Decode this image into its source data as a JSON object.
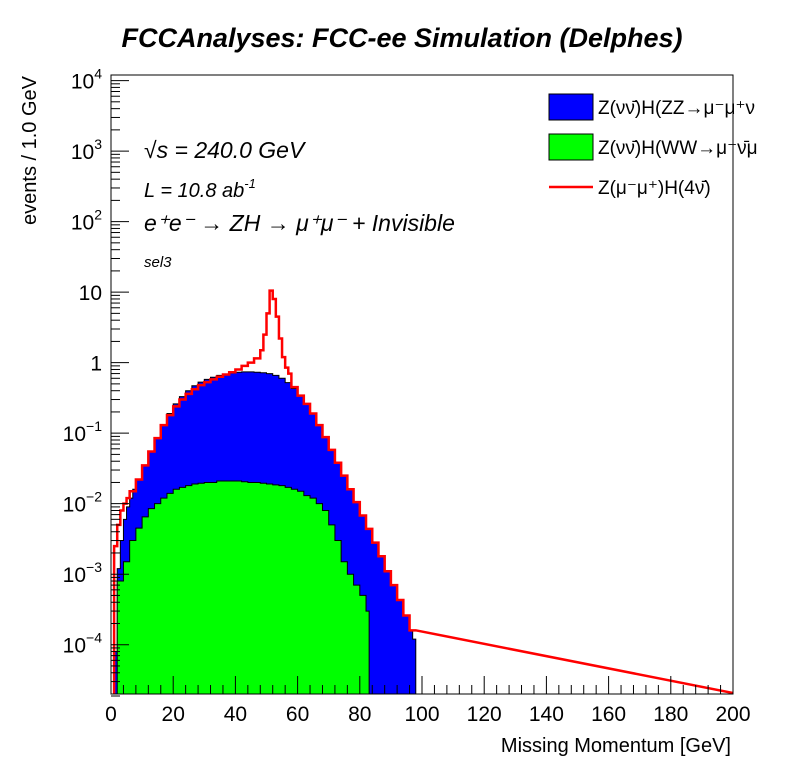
{
  "chart_data": {
    "type": "area",
    "title": "FCCAnalyses: FCC-ee Simulation (Delphes)",
    "xlabel": "Missing Momentum [GeV]",
    "ylabel": "events / 1.0 GeV",
    "xlim": [
      0,
      200
    ],
    "ylim": [
      2e-05,
      12000
    ],
    "yscale": "log",
    "grid": false,
    "legend_position": "top-right",
    "x_ticks": [
      "0",
      "20",
      "40",
      "60",
      "80",
      "100",
      "120",
      "140",
      "160",
      "180",
      "200"
    ],
    "y_ticks": [
      {
        "value": 0.0001,
        "base": "10",
        "exp": "−4"
      },
      {
        "value": 0.001,
        "base": "10",
        "exp": "−3"
      },
      {
        "value": 0.01,
        "base": "10",
        "exp": "−2"
      },
      {
        "value": 0.1,
        "base": "10",
        "exp": "−1"
      },
      {
        "value": 1,
        "base": "1",
        "exp": ""
      },
      {
        "value": 10,
        "base": "10",
        "exp": ""
      },
      {
        "value": 100,
        "base": "10",
        "exp": "2"
      },
      {
        "value": 1000,
        "base": "10",
        "exp": "3"
      },
      {
        "value": 10000,
        "base": "10",
        "exp": "4"
      }
    ],
    "annotations": {
      "sqrt_s": "√s = 240.0 GeV",
      "lumi": "L = 10.8 ab",
      "lumi_exp": "-1",
      "process": "e⁺e⁻ → ZH → μ⁺μ⁻ + Invisible",
      "selection": "sel3"
    },
    "series": [
      {
        "name": "Z(νν̄)H(ZZ→μ⁻μ⁺ν",
        "style": "filled",
        "color": "#0000ff",
        "points": [
          [
            0,
            0.0
          ],
          [
            1,
            8e-05
          ],
          [
            2,
            0.0012
          ],
          [
            3,
            0.003
          ],
          [
            4,
            0.006
          ],
          [
            5,
            0.009
          ],
          [
            6,
            0.012
          ],
          [
            7,
            0.016
          ],
          [
            8,
            0.022
          ],
          [
            10,
            0.035
          ],
          [
            12,
            0.055
          ],
          [
            14,
            0.085
          ],
          [
            16,
            0.13
          ],
          [
            18,
            0.19
          ],
          [
            20,
            0.26
          ],
          [
            22,
            0.33
          ],
          [
            24,
            0.4
          ],
          [
            26,
            0.47
          ],
          [
            28,
            0.53
          ],
          [
            30,
            0.58
          ],
          [
            32,
            0.62
          ],
          [
            34,
            0.66
          ],
          [
            36,
            0.69
          ],
          [
            38,
            0.71
          ],
          [
            40,
            0.73
          ],
          [
            42,
            0.74
          ],
          [
            44,
            0.74
          ],
          [
            46,
            0.73
          ],
          [
            48,
            0.72
          ],
          [
            50,
            0.7
          ],
          [
            52,
            0.66
          ],
          [
            54,
            0.6
          ],
          [
            56,
            0.52
          ],
          [
            58,
            0.43
          ],
          [
            60,
            0.34
          ],
          [
            62,
            0.26
          ],
          [
            64,
            0.19
          ],
          [
            66,
            0.13
          ],
          [
            68,
            0.088
          ],
          [
            70,
            0.058
          ],
          [
            72,
            0.038
          ],
          [
            74,
            0.025
          ],
          [
            76,
            0.016
          ],
          [
            78,
            0.0105
          ],
          [
            80,
            0.0068
          ],
          [
            82,
            0.0044
          ],
          [
            84,
            0.0028
          ],
          [
            86,
            0.0018
          ],
          [
            88,
            0.0011
          ],
          [
            90,
            0.0007
          ],
          [
            92,
            0.00043
          ],
          [
            94,
            0.00026
          ],
          [
            96,
            0.00016
          ],
          [
            97,
            0.00012
          ],
          [
            98,
            0.0
          ]
        ]
      },
      {
        "name": "Z(νν̄)H(WW→μ⁻ν̄μ",
        "style": "filled",
        "color": "#00ff00",
        "points": [
          [
            2,
            0.0008
          ],
          [
            4,
            0.0015
          ],
          [
            6,
            0.003
          ],
          [
            8,
            0.0045
          ],
          [
            10,
            0.0065
          ],
          [
            12,
            0.0085
          ],
          [
            14,
            0.01
          ],
          [
            16,
            0.012
          ],
          [
            18,
            0.014
          ],
          [
            20,
            0.016
          ],
          [
            22,
            0.017
          ],
          [
            24,
            0.018
          ],
          [
            26,
            0.019
          ],
          [
            28,
            0.0195
          ],
          [
            30,
            0.02
          ],
          [
            32,
            0.02
          ],
          [
            34,
            0.021
          ],
          [
            36,
            0.021
          ],
          [
            38,
            0.021
          ],
          [
            40,
            0.021
          ],
          [
            42,
            0.0205
          ],
          [
            44,
            0.02
          ],
          [
            46,
            0.02
          ],
          [
            48,
            0.0195
          ],
          [
            50,
            0.019
          ],
          [
            52,
            0.0185
          ],
          [
            54,
            0.018
          ],
          [
            56,
            0.017
          ],
          [
            58,
            0.016
          ],
          [
            60,
            0.015
          ],
          [
            62,
            0.013
          ],
          [
            64,
            0.012
          ],
          [
            66,
            0.01
          ],
          [
            68,
            0.008
          ],
          [
            70,
            0.005
          ],
          [
            72,
            0.003
          ],
          [
            74,
            0.0015
          ],
          [
            76,
            0.001
          ],
          [
            78,
            0.0007
          ],
          [
            80,
            0.0005
          ],
          [
            82,
            0.0003
          ],
          [
            83,
            0.0
          ]
        ]
      },
      {
        "name": "Z(μ⁻μ⁺)H(4ν̄)",
        "style": "line",
        "color": "#ff0000",
        "points": [
          [
            0,
            0.0
          ],
          [
            1,
            0.0025
          ],
          [
            2,
            0.005
          ],
          [
            3,
            0.008
          ],
          [
            4,
            0.01
          ],
          [
            5,
            0.012
          ],
          [
            6,
            0.015
          ],
          [
            8,
            0.022
          ],
          [
            10,
            0.035
          ],
          [
            12,
            0.055
          ],
          [
            14,
            0.085
          ],
          [
            16,
            0.13
          ],
          [
            18,
            0.18
          ],
          [
            20,
            0.24
          ],
          [
            22,
            0.3
          ],
          [
            24,
            0.36
          ],
          [
            26,
            0.42
          ],
          [
            28,
            0.48
          ],
          [
            30,
            0.53
          ],
          [
            32,
            0.58
          ],
          [
            34,
            0.63
          ],
          [
            36,
            0.68
          ],
          [
            38,
            0.73
          ],
          [
            40,
            0.8
          ],
          [
            42,
            0.9
          ],
          [
            44,
            1.0
          ],
          [
            46,
            1.15
          ],
          [
            48,
            1.5
          ],
          [
            49,
            2.5
          ],
          [
            50,
            5.0
          ],
          [
            51,
            10.5
          ],
          [
            52,
            8.0
          ],
          [
            53,
            4.5
          ],
          [
            54,
            2.2
          ],
          [
            55,
            1.2
          ],
          [
            56,
            0.85
          ],
          [
            57,
            0.7
          ],
          [
            58,
            0.45
          ],
          [
            60,
            0.34
          ],
          [
            62,
            0.26
          ],
          [
            64,
            0.19
          ],
          [
            66,
            0.13
          ],
          [
            68,
            0.088
          ],
          [
            70,
            0.058
          ],
          [
            72,
            0.038
          ],
          [
            74,
            0.025
          ],
          [
            76,
            0.016
          ],
          [
            78,
            0.0105
          ],
          [
            80,
            0.0068
          ],
          [
            82,
            0.0044
          ],
          [
            84,
            0.0028
          ],
          [
            86,
            0.0018
          ],
          [
            88,
            0.0011
          ],
          [
            90,
            0.0007
          ],
          [
            92,
            0.00043
          ],
          [
            94,
            0.00026
          ],
          [
            96,
            0.00016
          ],
          [
            98,
            0.0
          ]
        ]
      }
    ]
  }
}
